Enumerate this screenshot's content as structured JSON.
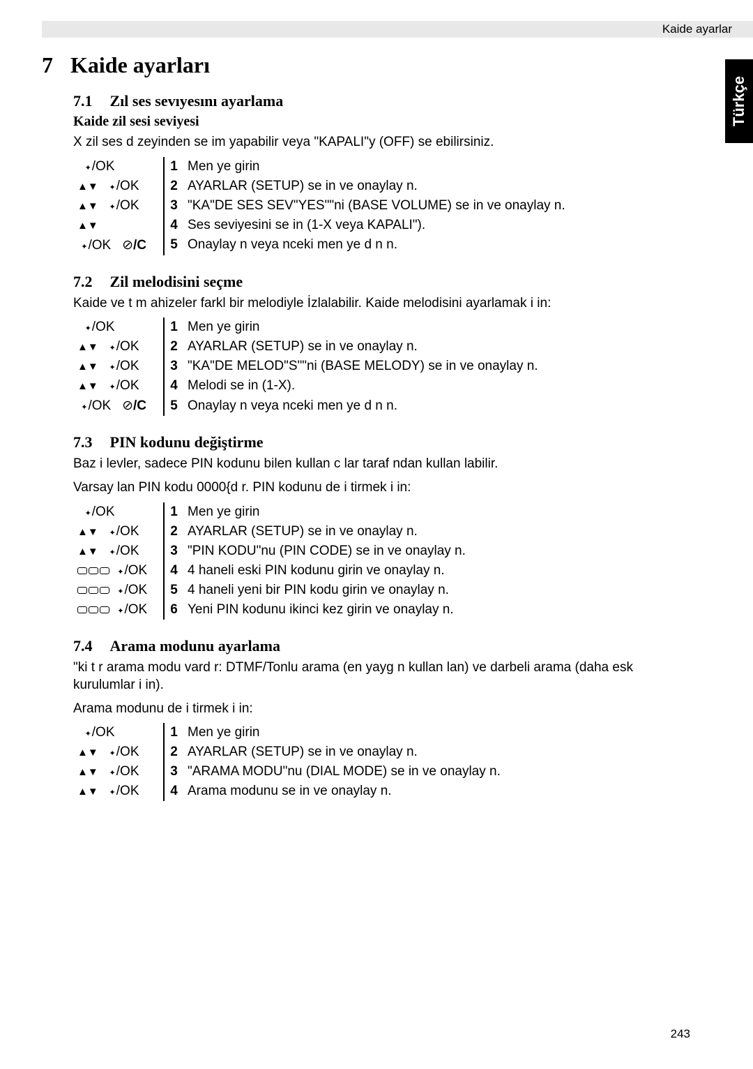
{
  "header": {
    "breadcrumb": "Kaide ayarlar"
  },
  "side_tab": "Türkçe",
  "chapter": {
    "num": "7",
    "title": "Kaide ayarları"
  },
  "sections": [
    {
      "num": "7.1",
      "title": "Zıl ses sevıyesını ayarlama",
      "sub_bold": "Kaide zil sesi seviyesi",
      "intro": "X zil ses d zeyinden se im yapabilir veya \"KAPALI\"y (OFF) se ebilirsiniz.",
      "steps": [
        {
          "icons": "ok",
          "n": "1",
          "t": "Men ye girin"
        },
        {
          "icons": "ud_ok",
          "n": "2",
          "t": " AYARLAR  (SETUP) se in ve onaylay n."
        },
        {
          "icons": "ud_ok",
          "n": "3",
          "t": "\"KA\"DE SES SEV\"YES\"\"ni (BASE VOLUME) se in ve onaylay n."
        },
        {
          "icons": "ud",
          "n": "4",
          "t": "Ses seviyesini se in (1-X veya  KAPALI\")."
        },
        {
          "icons": "ok_c",
          "n": "5",
          "t": "Onaylay n veya  nceki men ye d n n."
        }
      ]
    },
    {
      "num": "7.2",
      "title": "Zil melodisini seçme",
      "intro": "Kaide ve t m ahizeler farkl bir melodiyle İzlalabilir. Kaide melodisini ayarlamak i in:",
      "steps": [
        {
          "icons": "ok",
          "n": "1",
          "t": "Men ye girin"
        },
        {
          "icons": "ud_ok",
          "n": "2",
          "t": " AYARLAR  (SETUP) se in ve onaylay n."
        },
        {
          "icons": "ud_ok",
          "n": "3",
          "t": "\"KA\"DE MELOD\"S\"\"ni (BASE MELODY) se in ve onaylay n."
        },
        {
          "icons": "ud_ok",
          "n": "4",
          "t": "Melodi se in (1-X)."
        },
        {
          "icons": "ok_c",
          "n": "5",
          "t": "Onaylay n veya  nceki men ye d n n."
        }
      ]
    },
    {
      "num": "7.3",
      "title": "PIN kodunu değiştirme",
      "intro": "Baz  i levler, sadece PIN kodunu bilen kullan c lar taraf ndan kullan labilir.\nVarsay lan PIN kodu 0000{d r. PIN kodunu de i tirmek i in:",
      "steps": [
        {
          "icons": "ok",
          "n": "1",
          "t": "Men ye girin"
        },
        {
          "icons": "ud_ok",
          "n": "2",
          "t": " AYARLAR  (SETUP) se in ve onaylay n."
        },
        {
          "icons": "ud_ok",
          "n": "3",
          "t": "\"PIN KODU\"nu (PIN CODE) se in ve onaylay n."
        },
        {
          "icons": "keys_ok",
          "n": "4",
          "t": "4 haneli eski PIN kodunu girin ve onaylay n."
        },
        {
          "icons": "keys_ok",
          "n": "5",
          "t": "4 haneli yeni bir PIN kodu girin ve onaylay n."
        },
        {
          "icons": "keys_ok",
          "n": "6",
          "t": "Yeni PIN kodunu ikinci kez girin ve onaylay n."
        }
      ]
    },
    {
      "num": "7.4",
      "title": "Arama modunu ayarlama",
      "intro": "\"ki t r arama modu vard r: DTMF/Tonlu arama (en yayg n kullan lan) ve darbeli arama (daha esk kurulumlar i in).\nArama modunu de i tirmek i in:",
      "steps": [
        {
          "icons": "ok",
          "n": "1",
          "t": "Men ye girin"
        },
        {
          "icons": "ud_ok",
          "n": "2",
          "t": " AYARLAR  (SETUP) se in ve onaylay n."
        },
        {
          "icons": "ud_ok",
          "n": "3",
          "t": "\"ARAMA MODU\"nu  (DIAL MODE) se in ve onaylay n."
        },
        {
          "icons": "ud_ok",
          "n": "4",
          "t": "Arama modunu se in ve onaylay n."
        }
      ]
    }
  ],
  "page_number": "243",
  "icon_strings": {
    "ok": "/OK",
    "updown": "▲▼",
    "c": "/C"
  }
}
